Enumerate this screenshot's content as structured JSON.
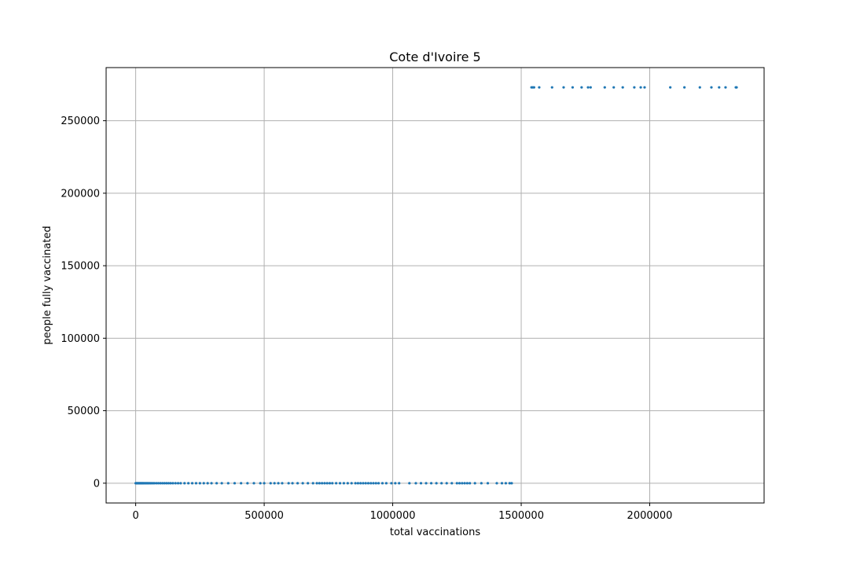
{
  "chart_data": {
    "type": "scatter",
    "title": "Cote d'Ivoire 5",
    "xlabel": "total vaccinations",
    "ylabel": "people fully vaccinated",
    "xlim": [
      -115000,
      2445000
    ],
    "ylim": [
      -13650,
      286650
    ],
    "xticks": [
      0,
      500000,
      1000000,
      1500000,
      2000000
    ],
    "yticks": [
      0,
      50000,
      100000,
      150000,
      200000,
      250000
    ],
    "grid": true,
    "marker_color": "#1f77b4",
    "series": [
      {
        "x": [
          0,
          3000,
          6000,
          9000,
          12000,
          15000,
          18000,
          21000,
          24000,
          27000,
          30000,
          34000,
          38000,
          42000,
          46000,
          50000,
          55000,
          60000,
          66000,
          72000,
          80000,
          88000,
          96000,
          104000,
          112000,
          120000,
          128000,
          136000,
          145000,
          155000,
          165000,
          175000,
          190000,
          205000,
          220000,
          235000,
          250000,
          265000,
          280000,
          295000,
          315000,
          335000,
          360000,
          385000,
          410000,
          435000,
          460000,
          485000,
          500000,
          525000,
          540000,
          555000,
          570000,
          595000,
          610000,
          630000,
          650000,
          670000,
          690000,
          705000,
          715000,
          725000,
          735000,
          745000,
          755000,
          765000,
          780000,
          795000,
          810000,
          825000,
          840000,
          855000,
          865000,
          875000,
          885000,
          895000,
          905000,
          915000,
          925000,
          935000,
          945000,
          960000,
          975000,
          995000,
          1010000,
          1025000,
          1065000,
          1090000,
          1110000,
          1130000,
          1150000,
          1170000,
          1190000,
          1210000,
          1230000,
          1250000,
          1260000,
          1270000,
          1280000,
          1290000,
          1300000,
          1320000,
          1345000,
          1370000,
          1405000,
          1425000,
          1440000,
          1455000,
          1463000,
          1540000,
          1545000,
          1550000,
          1570000,
          1620000,
          1665000,
          1700000,
          1735000,
          1760000,
          1770000,
          1825000,
          1860000,
          1895000,
          1940000,
          1965000,
          1980000,
          2080000,
          2135000,
          2195000,
          2240000,
          2270000,
          2295000,
          2335000,
          2338000
        ],
        "y": [
          0,
          0,
          0,
          0,
          0,
          0,
          0,
          0,
          0,
          0,
          0,
          0,
          0,
          0,
          0,
          0,
          0,
          0,
          0,
          0,
          0,
          0,
          0,
          0,
          0,
          0,
          0,
          0,
          0,
          0,
          0,
          0,
          0,
          0,
          0,
          0,
          0,
          0,
          0,
          0,
          0,
          0,
          0,
          0,
          0,
          0,
          0,
          0,
          0,
          0,
          0,
          0,
          0,
          0,
          0,
          0,
          0,
          0,
          0,
          0,
          0,
          0,
          0,
          0,
          0,
          0,
          0,
          0,
          0,
          0,
          0,
          0,
          0,
          0,
          0,
          0,
          0,
          0,
          0,
          0,
          0,
          0,
          0,
          0,
          0,
          0,
          0,
          0,
          0,
          0,
          0,
          0,
          0,
          0,
          0,
          0,
          0,
          0,
          0,
          0,
          0,
          0,
          0,
          0,
          0,
          0,
          0,
          0,
          0,
          273000,
          273000,
          273000,
          273000,
          273000,
          273000,
          273000,
          273000,
          273000,
          273000,
          273000,
          273000,
          273000,
          273000,
          273000,
          273000,
          273000,
          273000,
          273000,
          273000,
          273000,
          273000,
          273000,
          273000
        ]
      }
    ]
  }
}
